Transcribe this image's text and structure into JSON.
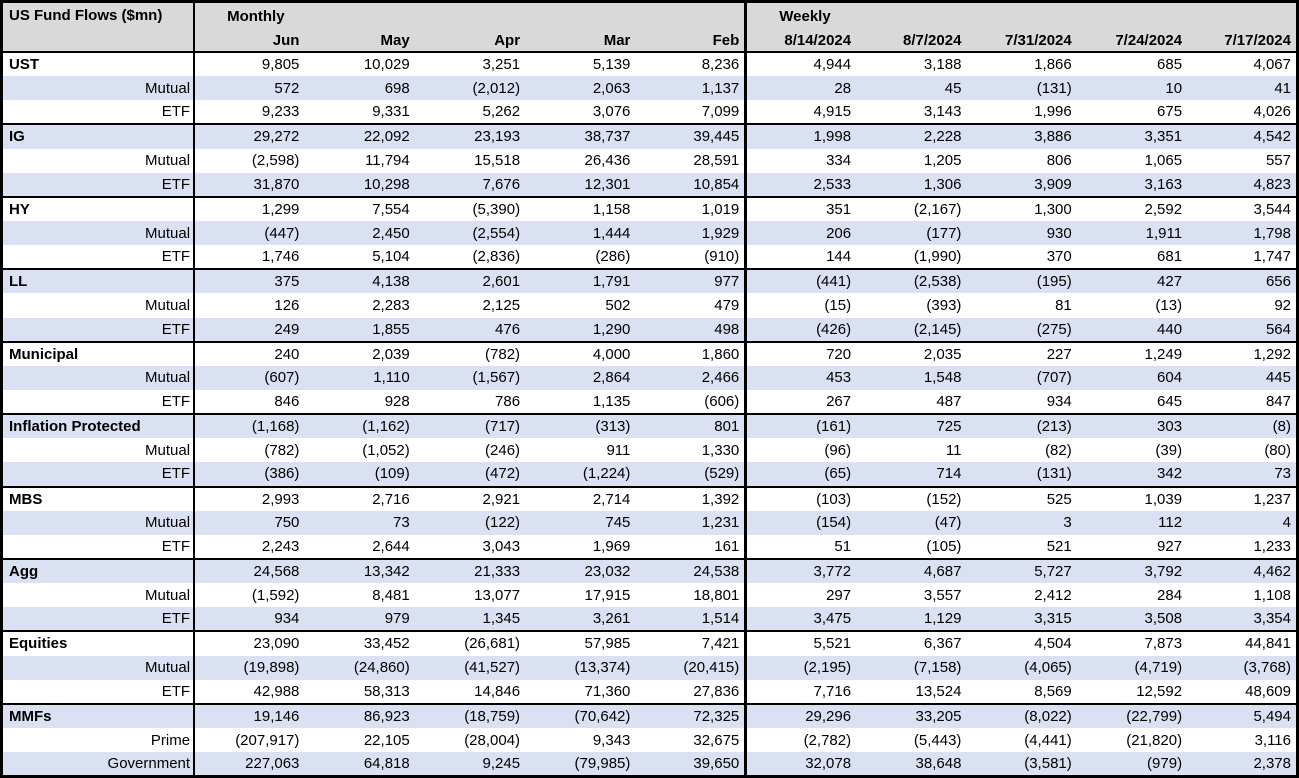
{
  "colors": {
    "header_bg": "#d9d9d9",
    "band_bg": "#d9e1f2",
    "border": "#000000",
    "text": "#000000",
    "background": "#ffffff"
  },
  "chart_data": {
    "type": "table",
    "title": "US Fund Flows ($mn)",
    "layout": {
      "grid": "banded-rows",
      "group_separators": true,
      "legend_position": "none"
    },
    "sections": [
      {
        "label": "Monthly",
        "columns": [
          "Jun",
          "May",
          "Apr",
          "Mar",
          "Feb"
        ]
      },
      {
        "label": "Weekly",
        "columns": [
          "8/14/2024",
          "8/7/2024",
          "7/31/2024",
          "7/24/2024",
          "7/17/2024"
        ]
      }
    ],
    "groups": [
      {
        "rows": [
          {
            "label": "UST",
            "values": [
              "9,805",
              "10,029",
              "3,251",
              "5,139",
              "8,236",
              "4,944",
              "3,188",
              "1,866",
              "685",
              "4,067"
            ]
          },
          {
            "label": "Mutual",
            "values": [
              "572",
              "698",
              "(2,012)",
              "2,063",
              "1,137",
              "28",
              "45",
              "(131)",
              "10",
              "41"
            ]
          },
          {
            "label": "ETF",
            "values": [
              "9,233",
              "9,331",
              "5,262",
              "3,076",
              "7,099",
              "4,915",
              "3,143",
              "1,996",
              "675",
              "4,026"
            ]
          }
        ]
      },
      {
        "rows": [
          {
            "label": "IG",
            "values": [
              "29,272",
              "22,092",
              "23,193",
              "38,737",
              "39,445",
              "1,998",
              "2,228",
              "3,886",
              "3,351",
              "4,542"
            ]
          },
          {
            "label": "Mutual",
            "values": [
              "(2,598)",
              "11,794",
              "15,518",
              "26,436",
              "28,591",
              "334",
              "1,205",
              "806",
              "1,065",
              "557"
            ]
          },
          {
            "label": "ETF",
            "values": [
              "31,870",
              "10,298",
              "7,676",
              "12,301",
              "10,854",
              "2,533",
              "1,306",
              "3,909",
              "3,163",
              "4,823"
            ]
          }
        ]
      },
      {
        "rows": [
          {
            "label": "HY",
            "values": [
              "1,299",
              "7,554",
              "(5,390)",
              "1,158",
              "1,019",
              "351",
              "(2,167)",
              "1,300",
              "2,592",
              "3,544"
            ]
          },
          {
            "label": "Mutual",
            "values": [
              "(447)",
              "2,450",
              "(2,554)",
              "1,444",
              "1,929",
              "206",
              "(177)",
              "930",
              "1,911",
              "1,798"
            ]
          },
          {
            "label": "ETF",
            "values": [
              "1,746",
              "5,104",
              "(2,836)",
              "(286)",
              "(910)",
              "144",
              "(1,990)",
              "370",
              "681",
              "1,747"
            ]
          }
        ]
      },
      {
        "rows": [
          {
            "label": "LL",
            "values": [
              "375",
              "4,138",
              "2,601",
              "1,791",
              "977",
              "(441)",
              "(2,538)",
              "(195)",
              "427",
              "656"
            ]
          },
          {
            "label": "Mutual",
            "values": [
              "126",
              "2,283",
              "2,125",
              "502",
              "479",
              "(15)",
              "(393)",
              "81",
              "(13)",
              "92"
            ]
          },
          {
            "label": "ETF",
            "values": [
              "249",
              "1,855",
              "476",
              "1,290",
              "498",
              "(426)",
              "(2,145)",
              "(275)",
              "440",
              "564"
            ]
          }
        ]
      },
      {
        "rows": [
          {
            "label": "Municipal",
            "values": [
              "240",
              "2,039",
              "(782)",
              "4,000",
              "1,860",
              "720",
              "2,035",
              "227",
              "1,249",
              "1,292"
            ]
          },
          {
            "label": "Mutual",
            "values": [
              "(607)",
              "1,110",
              "(1,567)",
              "2,864",
              "2,466",
              "453",
              "1,548",
              "(707)",
              "604",
              "445"
            ]
          },
          {
            "label": "ETF",
            "values": [
              "846",
              "928",
              "786",
              "1,135",
              "(606)",
              "267",
              "487",
              "934",
              "645",
              "847"
            ]
          }
        ]
      },
      {
        "rows": [
          {
            "label": "Inflation Protected",
            "values": [
              "(1,168)",
              "(1,162)",
              "(717)",
              "(313)",
              "801",
              "(161)",
              "725",
              "(213)",
              "303",
              "(8)"
            ]
          },
          {
            "label": "Mutual",
            "values": [
              "(782)",
              "(1,052)",
              "(246)",
              "911",
              "1,330",
              "(96)",
              "11",
              "(82)",
              "(39)",
              "(80)"
            ]
          },
          {
            "label": "ETF",
            "values": [
              "(386)",
              "(109)",
              "(472)",
              "(1,224)",
              "(529)",
              "(65)",
              "714",
              "(131)",
              "342",
              "73"
            ]
          }
        ]
      },
      {
        "rows": [
          {
            "label": "MBS",
            "values": [
              "2,993",
              "2,716",
              "2,921",
              "2,714",
              "1,392",
              "(103)",
              "(152)",
              "525",
              "1,039",
              "1,237"
            ]
          },
          {
            "label": "Mutual",
            "values": [
              "750",
              "73",
              "(122)",
              "745",
              "1,231",
              "(154)",
              "(47)",
              "3",
              "112",
              "4"
            ]
          },
          {
            "label": "ETF",
            "values": [
              "2,243",
              "2,644",
              "3,043",
              "1,969",
              "161",
              "51",
              "(105)",
              "521",
              "927",
              "1,233"
            ]
          }
        ]
      },
      {
        "rows": [
          {
            "label": "Agg",
            "values": [
              "24,568",
              "13,342",
              "21,333",
              "23,032",
              "24,538",
              "3,772",
              "4,687",
              "5,727",
              "3,792",
              "4,462"
            ]
          },
          {
            "label": "Mutual",
            "values": [
              "(1,592)",
              "8,481",
              "13,077",
              "17,915",
              "18,801",
              "297",
              "3,557",
              "2,412",
              "284",
              "1,108"
            ]
          },
          {
            "label": "ETF",
            "values": [
              "934",
              "979",
              "1,345",
              "3,261",
              "1,514",
              "3,475",
              "1,129",
              "3,315",
              "3,508",
              "3,354"
            ]
          }
        ]
      },
      {
        "rows": [
          {
            "label": "Equities",
            "values": [
              "23,090",
              "33,452",
              "(26,681)",
              "57,985",
              "7,421",
              "5,521",
              "6,367",
              "4,504",
              "7,873",
              "44,841"
            ]
          },
          {
            "label": "Mutual",
            "values": [
              "(19,898)",
              "(24,860)",
              "(41,527)",
              "(13,374)",
              "(20,415)",
              "(2,195)",
              "(7,158)",
              "(4,065)",
              "(4,719)",
              "(3,768)"
            ]
          },
          {
            "label": "ETF",
            "values": [
              "42,988",
              "58,313",
              "14,846",
              "71,360",
              "27,836",
              "7,716",
              "13,524",
              "8,569",
              "12,592",
              "48,609"
            ]
          }
        ]
      },
      {
        "rows": [
          {
            "label": "MMFs",
            "values": [
              "19,146",
              "86,923",
              "(18,759)",
              "(70,642)",
              "72,325",
              "29,296",
              "33,205",
              "(8,022)",
              "(22,799)",
              "5,494"
            ]
          },
          {
            "label": "Prime",
            "values": [
              "(207,917)",
              "22,105",
              "(28,004)",
              "9,343",
              "32,675",
              "(2,782)",
              "(5,443)",
              "(4,441)",
              "(21,820)",
              "3,116"
            ]
          },
          {
            "label": "Government",
            "values": [
              "227,063",
              "64,818",
              "9,245",
              "(79,985)",
              "39,650",
              "32,078",
              "38,648",
              "(3,581)",
              "(979)",
              "2,378"
            ]
          }
        ]
      }
    ]
  }
}
